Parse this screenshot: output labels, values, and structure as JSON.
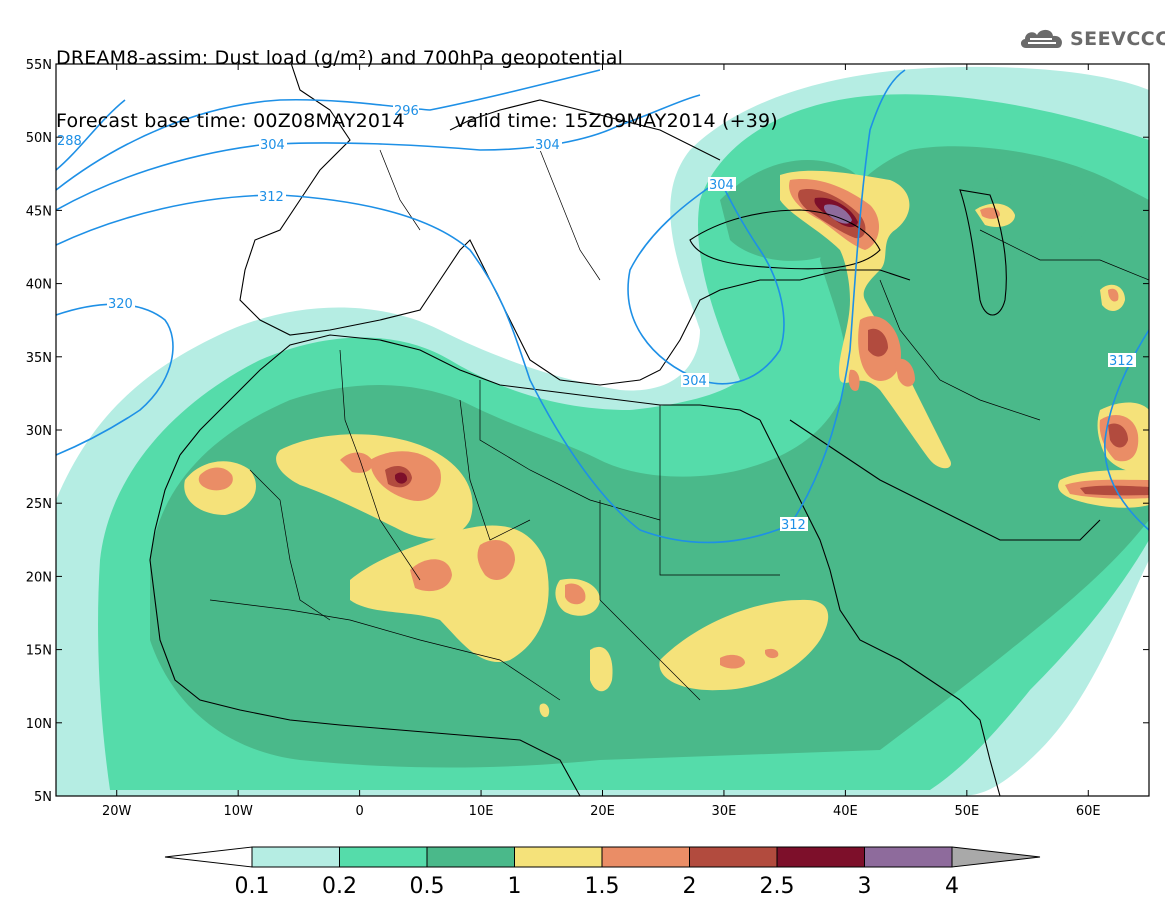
{
  "title": {
    "line1": "DREAM8-assim: Dust load (g/m²) and 700hPa geopotential",
    "line2_left": "Forecast base time: 00Z08MAY2014",
    "line2_right": "valid time: 15Z09MAY2014 (+39)"
  },
  "logo": {
    "text": "SEEVCCC",
    "icon": "cloud-icon"
  },
  "map": {
    "lon_range": [
      -25,
      65
    ],
    "lat_range": [
      5,
      55
    ],
    "lat_ticks": [
      {
        "value": 55,
        "label": "55N"
      },
      {
        "value": 50,
        "label": "50N"
      },
      {
        "value": 45,
        "label": "45N"
      },
      {
        "value": 40,
        "label": "40N"
      },
      {
        "value": 35,
        "label": "35N"
      },
      {
        "value": 30,
        "label": "30N"
      },
      {
        "value": 25,
        "label": "25N"
      },
      {
        "value": 20,
        "label": "20N"
      },
      {
        "value": 15,
        "label": "15N"
      },
      {
        "value": 10,
        "label": "10N"
      },
      {
        "value": 5,
        "label": "5N"
      }
    ],
    "lon_ticks": [
      {
        "value": -20,
        "label": "20W"
      },
      {
        "value": -10,
        "label": "10W"
      },
      {
        "value": 0,
        "label": "0"
      },
      {
        "value": 10,
        "label": "10E"
      },
      {
        "value": 20,
        "label": "20E"
      },
      {
        "value": 30,
        "label": "30E"
      },
      {
        "value": 40,
        "label": "40E"
      },
      {
        "value": 50,
        "label": "50E"
      },
      {
        "value": 60,
        "label": "60E"
      }
    ],
    "contour_labels": [
      "288",
      "296",
      "304",
      "304",
      "304",
      "312",
      "320",
      "304",
      "312",
      "312"
    ]
  },
  "colorbar": {
    "labels": [
      "0.1",
      "0.2",
      "0.5",
      "1",
      "1.5",
      "2",
      "2.5",
      "3",
      "4"
    ],
    "colors": [
      "#b5ede3",
      "#55dcaa",
      "#4ab98a",
      "#f5e27a",
      "#ea8d66",
      "#b24b3e",
      "#7d0f2a",
      "#8e6b9c",
      "#a9a9a9"
    ]
  }
}
